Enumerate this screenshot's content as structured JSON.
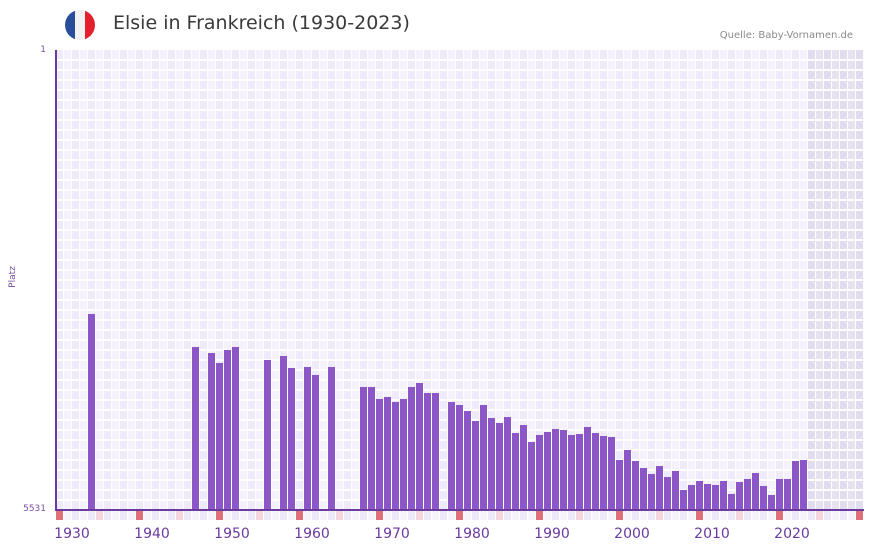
{
  "header": {
    "title": "Elsie in Frankreich (1930-2023)",
    "source": "Quelle: Baby-Vornamen.de",
    "flag_colors": [
      "#2a4d9b",
      "#f2f2f2",
      "#e3202c"
    ]
  },
  "axis": {
    "y_title": "Platz",
    "y_top_label": "1",
    "y_bottom_label": "5531",
    "x_labels": [
      "1930",
      "1940",
      "1950",
      "1960",
      "1970",
      "1980",
      "1990",
      "2000",
      "2010",
      "2020"
    ]
  },
  "colors": {
    "bar": "#8b56c7",
    "axis": "#6a3a9e",
    "tick_decade": "#e07078",
    "tick_half": "#f3d6de",
    "tick_normal": "#eeeaf8"
  },
  "chart_data": {
    "type": "bar",
    "title": "Elsie in Frankreich (1930-2023)",
    "xlabel": "",
    "ylabel": "Platz",
    "y_inverted": true,
    "ylim": [
      5531,
      1
    ],
    "x_range": [
      1930,
      2030
    ],
    "projection_shaded_from": 2024,
    "grid": true,
    "legend": null,
    "categories": [
      1934,
      1947,
      1949,
      1950,
      1951,
      1952,
      1956,
      1958,
      1959,
      1961,
      1962,
      1964,
      1968,
      1969,
      1970,
      1971,
      1972,
      1973,
      1974,
      1975,
      1976,
      1977,
      1979,
      1980,
      1981,
      1982,
      1983,
      1984,
      1985,
      1986,
      1987,
      1988,
      1989,
      1990,
      1991,
      1992,
      1993,
      1994,
      1995,
      1996,
      1997,
      1998,
      1999,
      2000,
      2001,
      2002,
      2003,
      2004,
      2005,
      2006,
      2007,
      2008,
      2009,
      2010,
      2011,
      2012,
      2013,
      2014,
      2015,
      2016,
      2017,
      2018,
      2019,
      2020,
      2021,
      2022,
      2023
    ],
    "values": [
      3175,
      3571,
      3643,
      3764,
      3607,
      3571,
      3727,
      3679,
      3823,
      3811,
      3908,
      3811,
      4052,
      4052,
      4196,
      4172,
      4232,
      4196,
      4052,
      4004,
      4124,
      4124,
      4232,
      4268,
      4340,
      4460,
      4268,
      4424,
      4484,
      4412,
      4604,
      4508,
      4713,
      4629,
      4593,
      4557,
      4569,
      4629,
      4617,
      4533,
      4604,
      4641,
      4653,
      4930,
      4809,
      4942,
      5026,
      5098,
      5002,
      5134,
      5062,
      5290,
      5230,
      5182,
      5218,
      5230,
      5182,
      5338,
      5194,
      5158,
      5086,
      5242,
      5350,
      5158,
      5158,
      4942,
      4930
    ]
  }
}
